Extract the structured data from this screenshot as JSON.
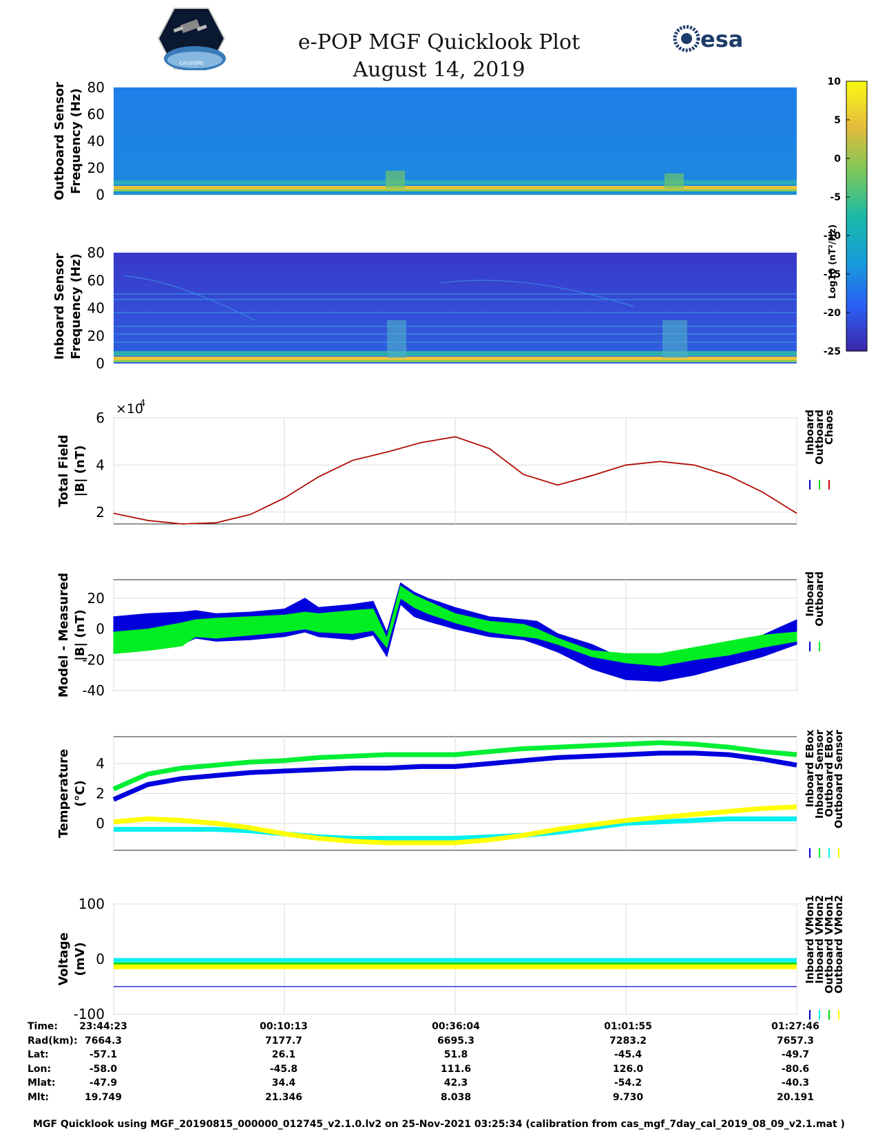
{
  "title": {
    "line1": "e-POP MGF Quicklook Plot",
    "line2": "August 14, 2019"
  },
  "logos": {
    "left": "CASSIOPE",
    "right": "esa"
  },
  "colorbar": {
    "ticks": [
      "10",
      "5",
      "0",
      "-5",
      "-10",
      "-15",
      "-20",
      "-25"
    ],
    "label": "Log10 (nT²/Hz)",
    "range": [
      -25,
      10
    ],
    "colors": [
      "#3d26a8",
      "#2a60f4",
      "#179ddb",
      "#1bbaa6",
      "#7cc85a",
      "#e5ba3b",
      "#f9fb15"
    ]
  },
  "chart_data": [
    {
      "type": "heatmap",
      "name": "outboard-spectrogram",
      "ylabel": [
        "Outboard Sensor",
        "Frequency (Hz)"
      ],
      "ylim": [
        0,
        80
      ],
      "yticks": [
        "80",
        "60",
        "40",
        "20",
        "0"
      ]
    },
    {
      "type": "heatmap",
      "name": "inboard-spectrogram",
      "ylabel": [
        "Inboard Sensor",
        "Frequency (Hz)"
      ],
      "ylim": [
        0,
        80
      ],
      "yticks": [
        "80",
        "60",
        "40",
        "20",
        "0"
      ]
    },
    {
      "type": "line",
      "name": "total-field",
      "ylabel": [
        "Total Field",
        "|B| (nT)"
      ],
      "multiplier": "×10",
      "multiplier_exp": "4",
      "ylim": [
        1.5,
        6
      ],
      "yticks": [
        2,
        4,
        6
      ],
      "ytick_labels": [
        "2",
        "4",
        "6"
      ],
      "x": [
        0,
        0.05,
        0.1,
        0.15,
        0.2,
        0.25,
        0.3,
        0.35,
        0.4,
        0.45,
        0.5,
        0.55,
        0.6,
        0.65,
        0.7,
        0.75,
        0.8,
        0.85,
        0.9,
        0.95,
        1
      ],
      "series": [
        {
          "name": "Inboard",
          "color": "#0000cc",
          "values": [
            1.95,
            1.65,
            1.5,
            1.55,
            1.9,
            2.6,
            3.5,
            4.2,
            4.55,
            4.95,
            5.2,
            4.7,
            3.6,
            3.15,
            3.55,
            4.0,
            4.15,
            4.0,
            3.55,
            2.85,
            1.95
          ]
        },
        {
          "name": "Outboard",
          "color": "#00cc00",
          "values": [
            1.95,
            1.65,
            1.5,
            1.55,
            1.9,
            2.6,
            3.5,
            4.2,
            4.55,
            4.95,
            5.2,
            4.7,
            3.6,
            3.15,
            3.55,
            4.0,
            4.15,
            4.0,
            3.55,
            2.85,
            1.95
          ]
        },
        {
          "name": "Chaos",
          "color": "#cc0000",
          "values": [
            1.95,
            1.65,
            1.5,
            1.55,
            1.9,
            2.6,
            3.5,
            4.2,
            4.55,
            4.95,
            5.2,
            4.7,
            3.6,
            3.15,
            3.55,
            4.0,
            4.15,
            4.0,
            3.55,
            2.85,
            1.95
          ]
        }
      ]
    },
    {
      "type": "area",
      "name": "model-minus-measured",
      "ylabel": [
        "Model - Measured",
        "|B| (nT)"
      ],
      "ylim": [
        -40,
        32
      ],
      "yticks": [
        20,
        0,
        -20,
        -40
      ],
      "ytick_labels": [
        "20",
        "0",
        "-20",
        "-40"
      ],
      "x": [
        0,
        0.05,
        0.1,
        0.12,
        0.15,
        0.2,
        0.25,
        0.28,
        0.3,
        0.35,
        0.38,
        0.4,
        0.42,
        0.44,
        0.46,
        0.5,
        0.55,
        0.6,
        0.62,
        0.65,
        0.7,
        0.75,
        0.8,
        0.85,
        0.9,
        0.95,
        1
      ],
      "series": [
        {
          "name": "Inboard",
          "color": "#0000dd",
          "lower": [
            -15,
            -12,
            -10,
            -6,
            -8,
            -7,
            -5,
            -2,
            -5,
            -7,
            -4,
            -18,
            16,
            8,
            5,
            0,
            -5,
            -7,
            -10,
            -15,
            -26,
            -33,
            -34,
            -30,
            -24,
            -18,
            -10
          ],
          "upper": [
            8,
            10,
            11,
            12,
            10,
            11,
            13,
            20,
            14,
            16,
            18,
            -2,
            30,
            24,
            20,
            14,
            8,
            6,
            5,
            -3,
            -10,
            -20,
            -22,
            -16,
            -10,
            -4,
            6
          ]
        },
        {
          "name": "Outboard",
          "color": "#00ee22",
          "lower": [
            -16,
            -14,
            -11,
            -5,
            -6,
            -4,
            -2,
            0,
            -2,
            -3,
            -1,
            -12,
            20,
            14,
            10,
            4,
            -2,
            -5,
            -6,
            -10,
            -18,
            -22,
            -24,
            -20,
            -17,
            -12,
            -8
          ],
          "upper": [
            -2,
            0,
            4,
            6,
            7,
            8,
            9,
            11,
            10,
            12,
            13,
            -6,
            28,
            22,
            18,
            10,
            5,
            3,
            0,
            -6,
            -14,
            -16,
            -16,
            -12,
            -8,
            -4,
            -2
          ]
        }
      ]
    },
    {
      "type": "line",
      "name": "temperature",
      "ylabel": [
        "Temperature",
        "(°C)"
      ],
      "ylim": [
        -1.8,
        5.8
      ],
      "yticks": [
        4,
        2,
        0
      ],
      "ytick_labels": [
        "4",
        "2",
        "0"
      ],
      "x": [
        0,
        0.05,
        0.1,
        0.15,
        0.2,
        0.25,
        0.3,
        0.35,
        0.4,
        0.45,
        0.5,
        0.55,
        0.6,
        0.65,
        0.7,
        0.75,
        0.8,
        0.85,
        0.9,
        0.95,
        1
      ],
      "series": [
        {
          "name": "Inboard EBox",
          "color": "#0000dd",
          "values": [
            1.6,
            2.6,
            3.0,
            3.2,
            3.4,
            3.5,
            3.6,
            3.7,
            3.7,
            3.8,
            3.8,
            4.0,
            4.2,
            4.4,
            4.5,
            4.6,
            4.7,
            4.7,
            4.6,
            4.3,
            3.9
          ]
        },
        {
          "name": "Inboard Sensor",
          "color": "#00ee33",
          "values": [
            2.3,
            3.3,
            3.7,
            3.9,
            4.1,
            4.2,
            4.4,
            4.5,
            4.6,
            4.6,
            4.6,
            4.8,
            5.0,
            5.1,
            5.2,
            5.3,
            5.4,
            5.3,
            5.1,
            4.8,
            4.6
          ]
        },
        {
          "name": "Outboard EBox",
          "color": "#00f0f0",
          "values": [
            -0.4,
            -0.4,
            -0.4,
            -0.4,
            -0.5,
            -0.7,
            -0.9,
            -1.0,
            -1.0,
            -1.0,
            -1.0,
            -0.9,
            -0.8,
            -0.6,
            -0.3,
            0.0,
            0.1,
            0.2,
            0.3,
            0.3,
            0.3
          ]
        },
        {
          "name": "Outboard Sensor",
          "color": "#ffff00",
          "values": [
            0.1,
            0.3,
            0.2,
            0.0,
            -0.3,
            -0.7,
            -1.0,
            -1.2,
            -1.3,
            -1.3,
            -1.3,
            -1.1,
            -0.8,
            -0.4,
            -0.1,
            0.2,
            0.4,
            0.6,
            0.8,
            1.0,
            1.1
          ]
        }
      ]
    },
    {
      "type": "line",
      "name": "voltage",
      "ylabel": [
        "Voltage",
        "(mV)"
      ],
      "ylim": [
        -100,
        100
      ],
      "yticks": [
        100,
        0,
        -100
      ],
      "ytick_labels": [
        "100",
        "0",
        "-100"
      ],
      "x": [
        0,
        1
      ],
      "series": [
        {
          "name": "Inboard VMon1",
          "color": "#0000cc",
          "values": [
            -50,
            -50
          ]
        },
        {
          "name": "Inboard VMon2",
          "color": "#00f0f0",
          "values": [
            -2,
            -2
          ]
        },
        {
          "name": "Outboard VMon1",
          "color": "#00dd00",
          "values": [
            -10,
            -10
          ]
        },
        {
          "name": "Outboard VMon2",
          "color": "#ffff00",
          "values": [
            -14,
            -14
          ]
        }
      ]
    }
  ],
  "xtick_fracs": [
    0,
    0.25,
    0.5,
    0.75,
    1
  ],
  "orbit_table": {
    "labels": [
      "Time:",
      "Rad(km):",
      "Lat:",
      "Lon:",
      "Mlat:",
      "Mlt:"
    ],
    "columns": [
      [
        "23:44:23",
        "7664.3",
        "-57.1",
        "-58.0",
        "-47.9",
        "19.749"
      ],
      [
        "00:10:13",
        "7177.7",
        "26.1",
        "-45.8",
        "34.4",
        "21.346"
      ],
      [
        "00:36:04",
        "6695.3",
        "51.8",
        "111.6",
        "42.3",
        "8.038"
      ],
      [
        "01:01:55",
        "7283.2",
        "-45.4",
        "126.0",
        "-54.2",
        "9.730"
      ],
      [
        "01:27:46",
        "7657.3",
        "-49.7",
        "-80.6",
        "-40.3",
        "20.191"
      ]
    ]
  },
  "footer": "MGF Quicklook using MGF_20190815_000000_012745_v2.1.0.lv2 on 25-Nov-2021 03:25:34 (calibration from cas_mgf_7day_cal_2019_08_09_v2.1.mat )"
}
